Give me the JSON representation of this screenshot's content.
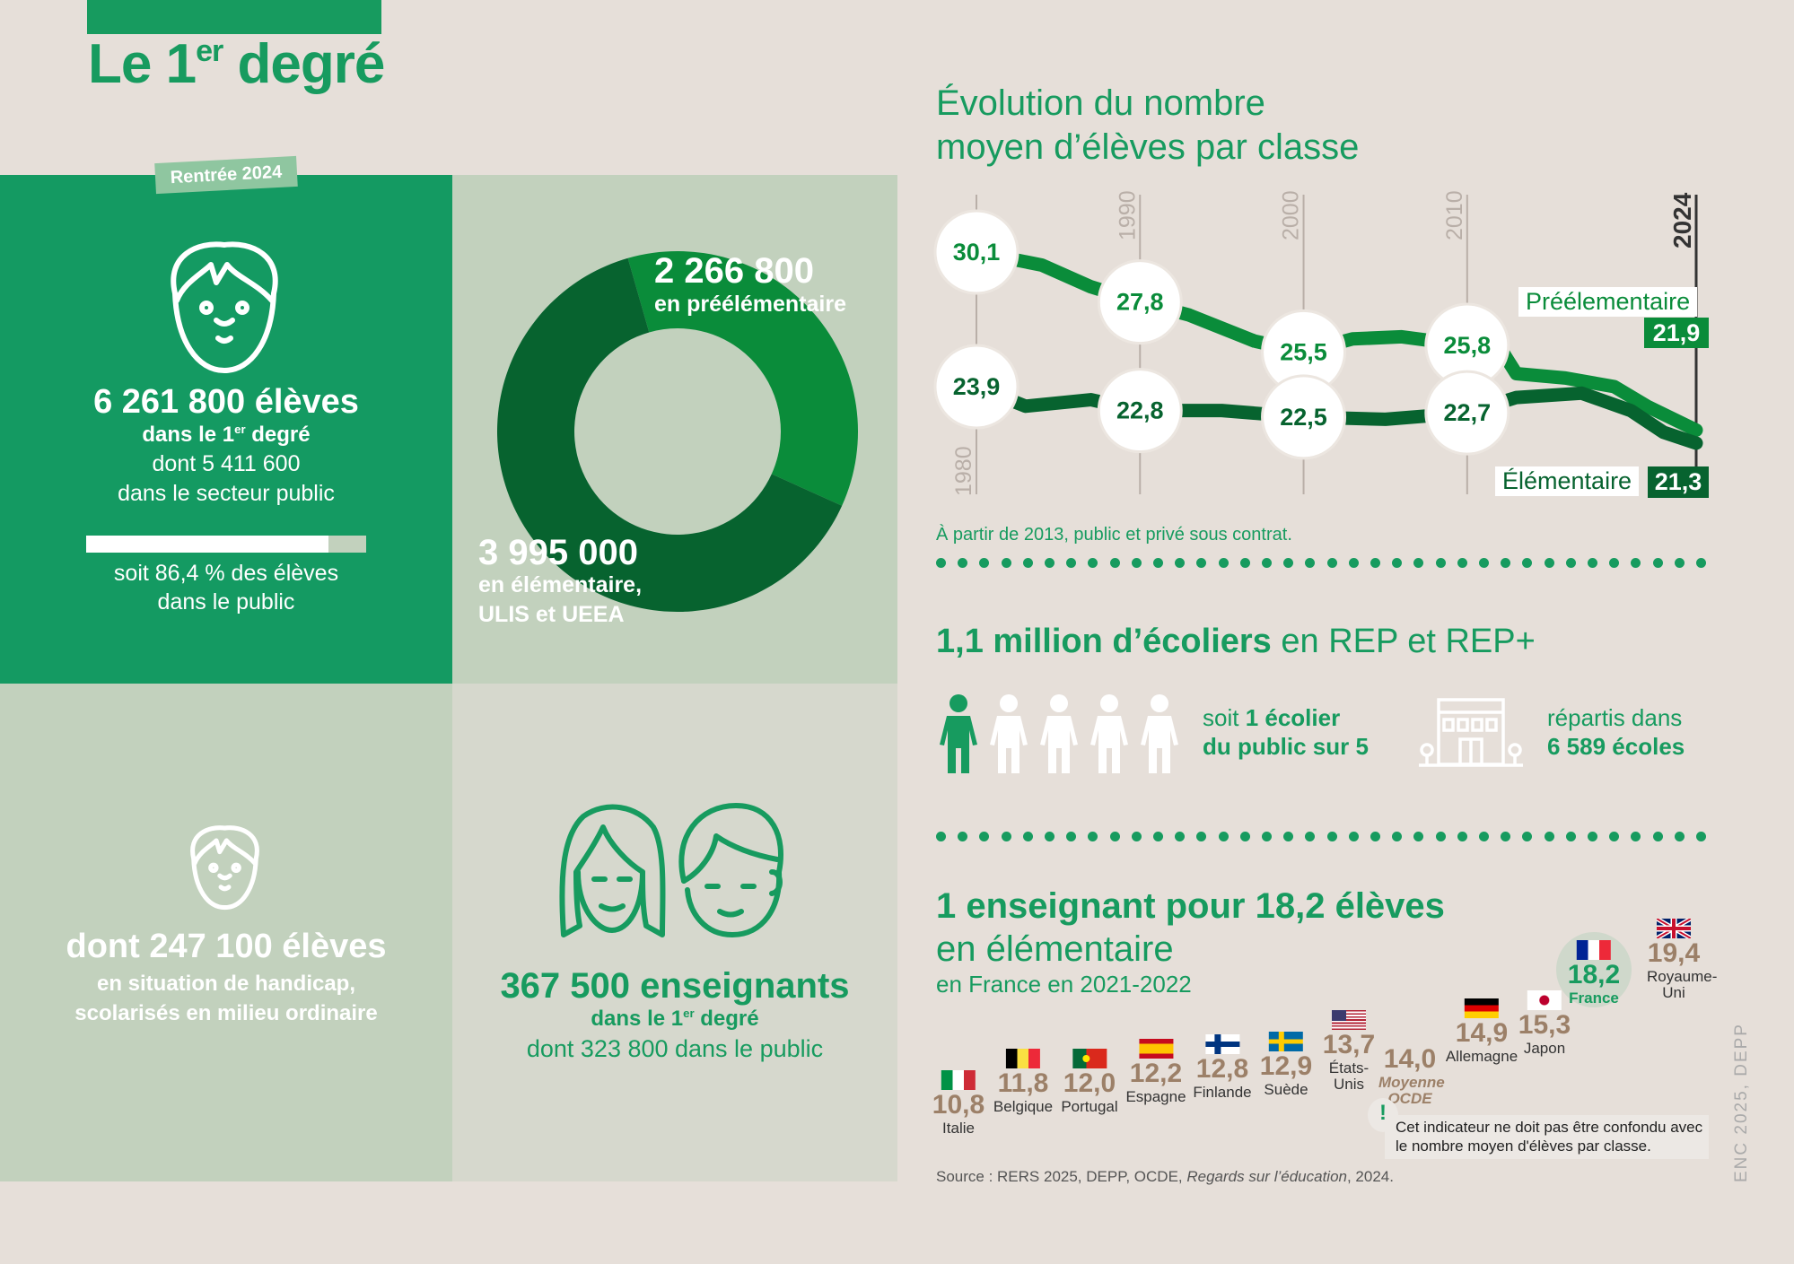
{
  "header": {
    "title_pre": "Le 1",
    "title_sup": "er",
    "title_post": " degré",
    "tag": "Rentrée 2024"
  },
  "students": {
    "total": "6 261 800 élèves",
    "line1_pre": "dans le 1",
    "line1_sup": "er",
    "line1_post": " degré",
    "line2": "dont 5 411 600",
    "line3": "dans le secteur public",
    "public_share_percent": 86.4,
    "share1": "soit 86,4 % des élèves",
    "share2": "dans le public"
  },
  "donut": {
    "pre_value": "2 266 800",
    "pre_label": "en préélémentaire",
    "elem_value": "3 995 000",
    "elem_label1": "en élémentaire,",
    "elem_label2": "ULIS et UEEA"
  },
  "handicap": {
    "value": "dont 247 100 élèves",
    "line1": "en situation de handicap,",
    "line2": "scolarisés en milieu ordinaire"
  },
  "teachers": {
    "value": "367 500 enseignants",
    "line1_pre": "dans le 1",
    "line1_sup": "er",
    "line1_post": " degré",
    "line2": "dont 323 800 dans le public"
  },
  "evolution": {
    "title1": "Évolution du nombre",
    "title2": "moyen d’élèves par classe",
    "note": "À partir de 2013, public et privé sous contrat.",
    "legend_pre": "Préélementaire",
    "legend_pre_value": "21,9",
    "legend_elem": "Élémentaire",
    "legend_elem_value": "21,3"
  },
  "rep": {
    "title_bold": "1,1 million d’écoliers",
    "title_rest": " en REP et REP+",
    "ratio_pre": "soit ",
    "ratio_bold": "1 écolier",
    "ratio_line2": "du public sur 5",
    "schools_line1": "répartis dans",
    "schools_line2": "6 589 écoles",
    "figures_total": 5,
    "figures_highlighted": 1
  },
  "ratio": {
    "title_bold": "1 enseignant pour 18,2 élèves",
    "title2": "en élémentaire",
    "subtitle": "en France en 2021-2022",
    "countries": [
      {
        "name": "Italie",
        "value": "10,8",
        "flag": "italy-flag-icon"
      },
      {
        "name": "Belgique",
        "value": "11,8",
        "flag": "belgium-flag-icon"
      },
      {
        "name": "Portugal",
        "value": "12,0",
        "flag": "portugal-flag-icon"
      },
      {
        "name": "Espagne",
        "value": "12,2",
        "flag": "spain-flag-icon"
      },
      {
        "name": "Finlande",
        "value": "12,8",
        "flag": "finland-flag-icon"
      },
      {
        "name": "Suède",
        "value": "12,9",
        "flag": "sweden-flag-icon"
      },
      {
        "name": "États-Unis",
        "value": "13,7",
        "flag": "usa-flag-icon"
      },
      {
        "name": "Moyenne OCDE",
        "value": "14,0",
        "flag": ""
      },
      {
        "name": "Allemagne",
        "value": "14,9",
        "flag": "germany-flag-icon"
      },
      {
        "name": "Japon",
        "value": "15,3",
        "flag": "japan-flag-icon"
      },
      {
        "name": "France",
        "value": "18,2",
        "flag": "france-flag-icon"
      },
      {
        "name": "Royaume-Uni",
        "value": "19,4",
        "flag": "uk-flag-icon"
      }
    ],
    "warning": "Cet indicateur ne doit pas être confondu avec le nombre moyen d'élèves par classe.",
    "warning_icon": "!"
  },
  "source_pre": "Source : RERS 2025, DEPP, OCDE, ",
  "source_italic": "Regards sur l’éducation",
  "source_post": ", 2024.",
  "credit": "ENC 2025, DEPP",
  "colors": {
    "brand_green": "#179b5f",
    "pre_green": "#0a8c3a",
    "elem_green": "#07632f",
    "value_brown": "#9c8068"
  },
  "chart_data": [
    {
      "type": "line",
      "title": "Évolution du nombre moyen d’élèves par classe",
      "x_ticks": [
        "1980",
        "1990",
        "2000",
        "2010",
        "2024"
      ],
      "xlim": [
        1980,
        2024
      ],
      "series": [
        {
          "name": "Préélementaire",
          "labeled": [
            [
              1980,
              30.1
            ],
            [
              1990,
              27.8
            ],
            [
              2000,
              25.5
            ],
            [
              2010,
              25.8
            ],
            [
              2024,
              21.9
            ]
          ],
          "labels": [
            "30,1",
            "27,8",
            "25,5",
            "25,8",
            "21,9"
          ],
          "points": [
            [
              1980,
              30.1
            ],
            [
              1984,
              29.5
            ],
            [
              1987,
              28.5
            ],
            [
              1990,
              27.8
            ],
            [
              1993,
              27.2
            ],
            [
              1997,
              26.0
            ],
            [
              2000,
              25.5
            ],
            [
              2003,
              26.1
            ],
            [
              2006,
              26.2
            ],
            [
              2010,
              25.8
            ],
            [
              2012,
              25.7
            ],
            [
              2013,
              24.5
            ],
            [
              2016,
              24.3
            ],
            [
              2019,
              23.9
            ],
            [
              2021,
              23.0
            ],
            [
              2024,
              21.9
            ]
          ]
        },
        {
          "name": "Élémentaire",
          "labeled": [
            [
              1980,
              23.9
            ],
            [
              1990,
              22.8
            ],
            [
              2000,
              22.5
            ],
            [
              2010,
              22.7
            ],
            [
              2024,
              21.3
            ]
          ],
          "labels": [
            "23,9",
            "22,8",
            "22,5",
            "22,7",
            "21,3"
          ],
          "points": [
            [
              1980,
              23.9
            ],
            [
              1983,
              23.0
            ],
            [
              1987,
              23.3
            ],
            [
              1990,
              22.8
            ],
            [
              1995,
              22.8
            ],
            [
              2000,
              22.5
            ],
            [
              2005,
              22.4
            ],
            [
              2010,
              22.7
            ],
            [
              2013,
              23.4
            ],
            [
              2017,
              23.6
            ],
            [
              2020,
              22.8
            ],
            [
              2022,
              21.8
            ],
            [
              2024,
              21.3
            ]
          ]
        }
      ]
    },
    {
      "type": "pie",
      "categories": [
        "en préélémentaire",
        "en élémentaire, ULIS et UEEA"
      ],
      "values": [
        2266800,
        3995000
      ]
    }
  ]
}
